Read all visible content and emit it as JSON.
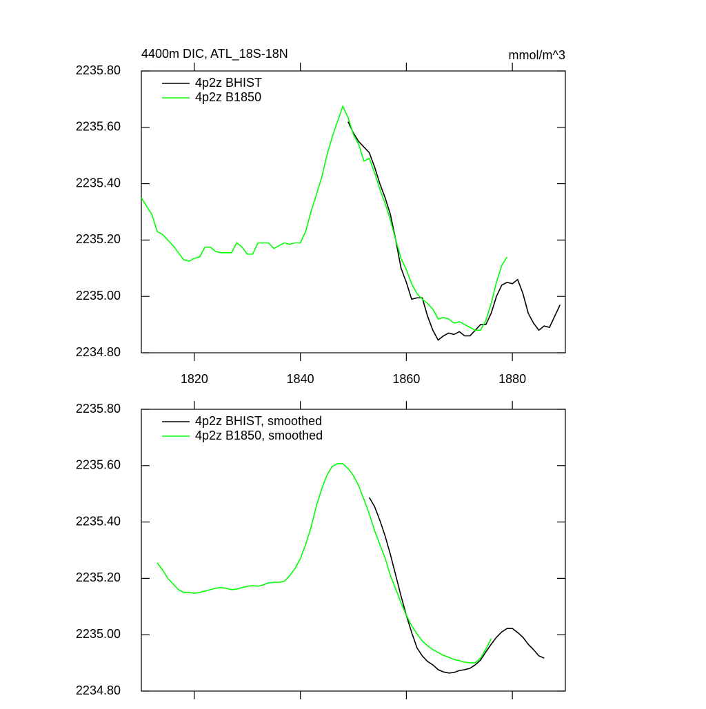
{
  "chart_data": [
    {
      "type": "line",
      "title": "4400m DIC, ATL_18S-18N",
      "units": "mmol/m^3",
      "x": [
        1810,
        1811,
        1812,
        1813,
        1814,
        1815,
        1816,
        1817,
        1818,
        1819,
        1820,
        1821,
        1822,
        1823,
        1824,
        1825,
        1826,
        1827,
        1828,
        1829,
        1830,
        1831,
        1832,
        1833,
        1834,
        1835,
        1836,
        1837,
        1838,
        1839,
        1840,
        1841,
        1842,
        1843,
        1844,
        1845,
        1846,
        1847,
        1848,
        1849,
        1850,
        1851,
        1852,
        1853,
        1854,
        1855,
        1856,
        1857,
        1858,
        1859,
        1860,
        1861,
        1862,
        1863,
        1864,
        1865,
        1866,
        1867,
        1868,
        1869,
        1870,
        1871,
        1872,
        1873,
        1874,
        1875,
        1876,
        1877,
        1878,
        1879,
        1880,
        1881,
        1882,
        1883,
        1884,
        1885,
        1886,
        1887,
        1888,
        1889
      ],
      "xlim": [
        1810,
        1890
      ],
      "xticks": [
        1820,
        1840,
        1860,
        1880
      ],
      "xtick_labels": true,
      "ylim": [
        2234.8,
        2235.8
      ],
      "yticks": [
        {
          "value": 2234.8,
          "label": "2234.80"
        },
        {
          "value": 2235.0,
          "label": "2235.00"
        },
        {
          "value": 2235.2,
          "label": "2235.20"
        },
        {
          "value": 2235.4,
          "label": "2235.40"
        },
        {
          "value": 2235.6,
          "label": "2235.60"
        },
        {
          "value": 2235.8,
          "label": "2235.80"
        }
      ],
      "series": [
        {
          "name": "4p2z BHIST",
          "color": "#000000",
          "values": [
            null,
            null,
            null,
            null,
            null,
            null,
            null,
            null,
            null,
            null,
            null,
            null,
            null,
            null,
            null,
            null,
            null,
            null,
            null,
            null,
            null,
            null,
            null,
            null,
            null,
            null,
            null,
            null,
            null,
            null,
            null,
            null,
            null,
            null,
            null,
            null,
            null,
            null,
            null,
            2235.62,
            2235.58,
            2235.55,
            2235.53,
            2235.51,
            2235.46,
            2235.4,
            2235.35,
            2235.29,
            2235.2,
            2235.1,
            2235.05,
            2234.99,
            2234.995,
            2234.995,
            2234.93,
            2234.88,
            2234.845,
            2234.86,
            2234.87,
            2234.865,
            2234.875,
            2234.86,
            2234.86,
            2234.88,
            2234.9,
            2234.9,
            2234.94,
            2235.0,
            2235.04,
            2235.05,
            2235.045,
            2235.06,
            2235.01,
            2234.94,
            2234.905,
            2234.88,
            2234.895,
            2234.89,
            2234.93,
            2234.97
          ]
        },
        {
          "name": "4p2z B1850",
          "color": "#00ff00",
          "values": [
            2235.35,
            2235.32,
            2235.29,
            2235.23,
            2235.22,
            2235.2,
            2235.18,
            2235.155,
            2235.13,
            2235.125,
            2235.135,
            2235.14,
            2235.175,
            2235.175,
            2235.16,
            2235.155,
            2235.155,
            2235.155,
            2235.19,
            2235.175,
            2235.15,
            2235.15,
            2235.19,
            2235.19,
            2235.19,
            2235.17,
            2235.18,
            2235.19,
            2235.185,
            2235.19,
            2235.19,
            2235.23,
            2235.3,
            2235.36,
            2235.42,
            2235.5,
            2235.565,
            2235.62,
            2235.675,
            2235.635,
            2235.575,
            2235.54,
            2235.48,
            2235.49,
            2235.44,
            2235.38,
            2235.33,
            2235.27,
            2235.2,
            2235.135,
            2235.095,
            2235.045,
            2235.01,
            2234.99,
            2234.975,
            2234.955,
            2234.92,
            2234.925,
            2234.92,
            2234.905,
            2234.91,
            2234.9,
            2234.89,
            2234.88,
            2234.88,
            2234.915,
            2234.975,
            2235.05,
            2235.11,
            2235.14,
            null,
            null,
            null,
            null,
            null,
            null,
            null,
            null,
            null,
            null
          ]
        }
      ]
    },
    {
      "type": "line",
      "x": [
        1810,
        1811,
        1812,
        1813,
        1814,
        1815,
        1816,
        1817,
        1818,
        1819,
        1820,
        1821,
        1822,
        1823,
        1824,
        1825,
        1826,
        1827,
        1828,
        1829,
        1830,
        1831,
        1832,
        1833,
        1834,
        1835,
        1836,
        1837,
        1838,
        1839,
        1840,
        1841,
        1842,
        1843,
        1844,
        1845,
        1846,
        1847,
        1848,
        1849,
        1850,
        1851,
        1852,
        1853,
        1854,
        1855,
        1856,
        1857,
        1858,
        1859,
        1860,
        1861,
        1862,
        1863,
        1864,
        1865,
        1866,
        1867,
        1868,
        1869,
        1870,
        1871,
        1872,
        1873,
        1874,
        1875,
        1876,
        1877,
        1878,
        1879,
        1880,
        1881,
        1882,
        1883,
        1884,
        1885,
        1886,
        1887,
        1888,
        1889
      ],
      "xlim": [
        1810,
        1890
      ],
      "xticks": [
        1820,
        1840,
        1860,
        1880
      ],
      "xtick_labels": false,
      "ylim": [
        2234.8,
        2235.8
      ],
      "yticks": [
        {
          "value": 2234.8,
          "label": "2234.80"
        },
        {
          "value": 2235.0,
          "label": "2235.00"
        },
        {
          "value": 2235.2,
          "label": "2235.20"
        },
        {
          "value": 2235.4,
          "label": "2235.40"
        },
        {
          "value": 2235.6,
          "label": "2235.60"
        },
        {
          "value": 2235.8,
          "label": "2235.80"
        }
      ],
      "series": [
        {
          "name": "4p2z BHIST, smoothed",
          "color": "#000000",
          "values": [
            null,
            null,
            null,
            null,
            null,
            null,
            null,
            null,
            null,
            null,
            null,
            null,
            null,
            null,
            null,
            null,
            null,
            null,
            null,
            null,
            null,
            null,
            null,
            null,
            null,
            null,
            null,
            null,
            null,
            null,
            null,
            null,
            null,
            null,
            null,
            null,
            null,
            null,
            null,
            null,
            null,
            null,
            null,
            2235.487,
            2235.455,
            2235.406,
            2235.35,
            2235.284,
            2235.211,
            2235.137,
            2235.069,
            2235.008,
            2234.954,
            2234.925,
            2234.905,
            2234.893,
            2234.876,
            2234.868,
            2234.864,
            2234.866,
            2234.873,
            2234.876,
            2234.881,
            2234.893,
            2234.91,
            2234.939,
            2234.966,
            2234.991,
            2235.01,
            2235.022,
            2235.022,
            2235.008,
            2234.991,
            2234.966,
            2234.947,
            2234.925,
            2234.917,
            null,
            null,
            null
          ]
        },
        {
          "name": "4p2z B1850, smoothed",
          "color": "#00ff00",
          "values": [
            null,
            null,
            null,
            2235.255,
            2235.23,
            2235.2,
            2235.18,
            2235.16,
            2235.15,
            2235.15,
            2235.147,
            2235.15,
            2235.155,
            2235.16,
            2235.165,
            2235.167,
            2235.165,
            2235.16,
            2235.162,
            2235.167,
            2235.172,
            2235.174,
            2235.172,
            2235.177,
            2235.184,
            2235.186,
            2235.186,
            2235.19,
            2235.21,
            2235.235,
            2235.27,
            2235.32,
            2235.38,
            2235.455,
            2235.516,
            2235.565,
            2235.597,
            2235.607,
            2235.607,
            2235.59,
            2235.565,
            2235.529,
            2235.48,
            2235.43,
            2235.37,
            2235.32,
            2235.272,
            2235.21,
            2235.162,
            2235.113,
            2235.069,
            2235.032,
            2235.003,
            2234.978,
            2234.961,
            2234.947,
            2234.937,
            2234.927,
            2234.92,
            2234.912,
            2234.908,
            2234.903,
            2234.9,
            2234.9,
            2234.917,
            2234.949,
            2234.986,
            null,
            null,
            null,
            null,
            null,
            null,
            null,
            null,
            null,
            null,
            null,
            null,
            null
          ]
        }
      ]
    }
  ]
}
